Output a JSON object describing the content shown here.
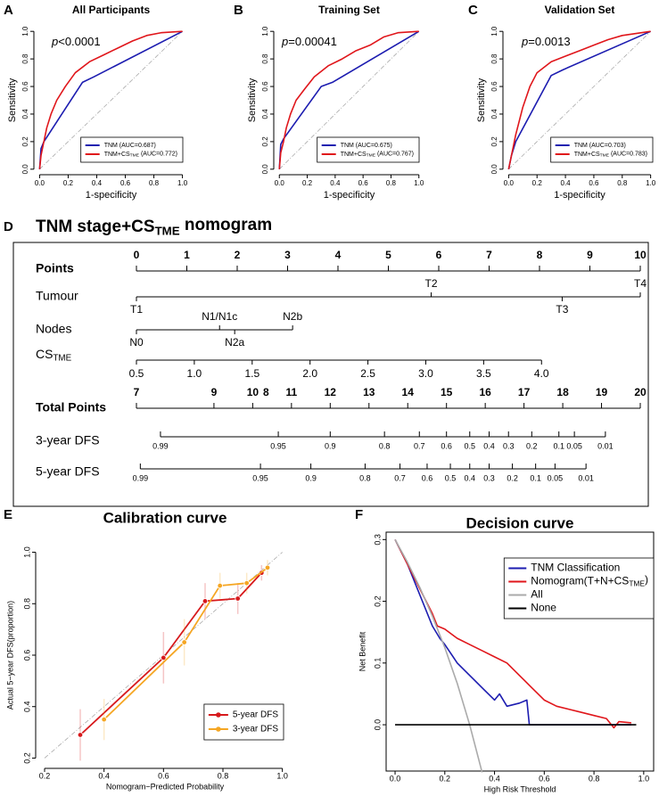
{
  "chart_data": [
    {
      "type": "line",
      "panel": "A",
      "title": "All Participants",
      "xlabel": "1-specificity",
      "ylabel": "Sensitivity",
      "annotation": [
        "p",
        "<0.0001"
      ],
      "xlim": [
        -0.04,
        1.04
      ],
      "ylim": [
        -0.04,
        1.04
      ],
      "xticks": [
        {
          "value": 0,
          "label": "0.0"
        },
        0.2,
        0.4,
        0.6,
        0.8,
        {
          "value": 1,
          "label": "1.0"
        }
      ],
      "yticks": [
        {
          "value": 0,
          "label": "0.0"
        },
        0.2,
        0.4,
        0.6,
        0.8,
        {
          "value": 1,
          "label": "1.0"
        }
      ],
      "reference_line": true,
      "legend": "bottom-right",
      "series": [
        {
          "name": "TNM (AUC=0.687)",
          "color": "#1c1cb0",
          "x": [
            0,
            0.01,
            0.03,
            0.3,
            0.38,
            1
          ],
          "values": [
            0,
            0.15,
            0.2,
            0.63,
            0.67,
            1
          ]
        },
        {
          "name": [
            "TNM+CS",
            "TME",
            " (AUC=0.772)"
          ],
          "color": "#e0161b",
          "x": [
            0,
            0.01,
            0.03,
            0.05,
            0.08,
            0.12,
            0.18,
            0.25,
            0.35,
            0.45,
            0.55,
            0.65,
            0.75,
            0.85,
            1
          ],
          "values": [
            0,
            0.1,
            0.2,
            0.3,
            0.4,
            0.5,
            0.6,
            0.7,
            0.78,
            0.83,
            0.88,
            0.93,
            0.97,
            0.99,
            1
          ]
        }
      ]
    },
    {
      "type": "line",
      "panel": "B",
      "title": "Training Set",
      "xlabel": "1-specificity",
      "ylabel": "Sensitivity",
      "annotation": [
        "p",
        "=0.00041"
      ],
      "xlim": [
        -0.04,
        1.04
      ],
      "ylim": [
        -0.04,
        1.04
      ],
      "xticks": [
        {
          "value": 0,
          "label": "0.0"
        },
        0.2,
        0.4,
        0.6,
        0.8,
        {
          "value": 1,
          "label": "1.0"
        }
      ],
      "yticks": [
        {
          "value": 0,
          "label": "0.0"
        },
        0.2,
        0.4,
        0.6,
        0.8,
        {
          "value": 1,
          "label": "1.0"
        }
      ],
      "reference_line": true,
      "legend": "bottom-right",
      "series": [
        {
          "name": "TNM (AUC=0.675)",
          "color": "#1c1cb0",
          "x": [
            0,
            0.01,
            0.03,
            0.3,
            0.38,
            1
          ],
          "values": [
            0,
            0.18,
            0.22,
            0.6,
            0.63,
            1
          ]
        },
        {
          "name": [
            "TNM+CS",
            "TME",
            " (AUC=0.767)"
          ],
          "color": "#e0161b",
          "x": [
            0,
            0.01,
            0.03,
            0.05,
            0.08,
            0.12,
            0.18,
            0.25,
            0.35,
            0.45,
            0.55,
            0.65,
            0.75,
            0.85,
            1
          ],
          "values": [
            0,
            0.12,
            0.2,
            0.3,
            0.4,
            0.5,
            0.58,
            0.67,
            0.75,
            0.8,
            0.86,
            0.9,
            0.96,
            0.99,
            1
          ]
        }
      ]
    },
    {
      "type": "line",
      "panel": "C",
      "title": "Validation Set",
      "xlabel": "1-specificity",
      "ylabel": "Sensitivity",
      "annotation": [
        "p",
        "=0.0013"
      ],
      "xlim": [
        -0.04,
        1.04
      ],
      "ylim": [
        -0.04,
        1.04
      ],
      "xticks": [
        {
          "value": 0,
          "label": "0.0"
        },
        0.2,
        0.4,
        0.6,
        0.8,
        {
          "value": 1,
          "label": "1.0"
        }
      ],
      "yticks": [
        {
          "value": 0,
          "label": "0.0"
        },
        0.2,
        0.4,
        0.6,
        0.8,
        {
          "value": 1,
          "label": "1.0"
        }
      ],
      "reference_line": true,
      "legend": "bottom-right",
      "series": [
        {
          "name": "TNM (AUC=0.703)",
          "color": "#1c1cb0",
          "x": [
            0,
            0.02,
            0.05,
            0.3,
            0.38,
            1
          ],
          "values": [
            0,
            0.1,
            0.2,
            0.68,
            0.72,
            1
          ]
        },
        {
          "name": [
            "TNM+CS",
            "TME",
            " (AUC=0.783)"
          ],
          "color": "#e0161b",
          "x": [
            0,
            0.02,
            0.05,
            0.1,
            0.15,
            0.2,
            0.3,
            0.4,
            0.5,
            0.6,
            0.7,
            0.8,
            1
          ],
          "values": [
            0,
            0.1,
            0.25,
            0.45,
            0.6,
            0.7,
            0.78,
            0.82,
            0.86,
            0.9,
            0.94,
            0.97,
            1
          ]
        }
      ]
    },
    {
      "type": "line",
      "panel": "E",
      "title": "Calibration curve",
      "xlabel": "Nomogram−Predicted Probability",
      "ylabel": "Actual 5−year DFS(proportion)",
      "xlim": [
        0.17,
        1.04
      ],
      "ylim": [
        0.16,
        1.04
      ],
      "xticks": [
        0.2,
        0.4,
        0.6,
        0.8,
        {
          "value": 1,
          "label": "1.0"
        }
      ],
      "yticks": [
        0.2,
        0.4,
        0.6,
        0.8,
        {
          "value": 1,
          "label": "1.0"
        }
      ],
      "reference_line": true,
      "markers": true,
      "legend": "bottom-right",
      "series": [
        {
          "name": "5-year DFS",
          "color": "#d7191c",
          "x": [
            0.32,
            0.6,
            0.74,
            0.85,
            0.93
          ],
          "values": [
            0.29,
            0.59,
            0.81,
            0.82,
            0.92
          ],
          "errors": [
            0.1,
            0.1,
            0.07,
            0.06,
            0.03
          ]
        },
        {
          "name": "3-year DFS",
          "color": "#f5a623",
          "x": [
            0.4,
            0.67,
            0.79,
            0.88,
            0.95
          ],
          "values": [
            0.35,
            0.65,
            0.87,
            0.88,
            0.94
          ],
          "errors": [
            0.08,
            0.09,
            0.05,
            0.04,
            0.03
          ]
        }
      ]
    },
    {
      "type": "line",
      "panel": "F",
      "title": "Decision curve",
      "xlabel": "High Risk Threshold",
      "ylabel": "Net Benefit",
      "xlim": [
        -0.036,
        1.04
      ],
      "ylim": [
        -0.075,
        0.312
      ],
      "box": true,
      "xticks": [
        {
          "value": 0,
          "label": "0.0"
        },
        0.2,
        0.4,
        0.6,
        0.8,
        {
          "value": 1,
          "label": "1.0"
        }
      ],
      "yticks": [
        {
          "value": 0,
          "label": "0.0"
        },
        0.1,
        0.2,
        0.3
      ],
      "legend": "top-right",
      "series": [
        {
          "name": "TNM Classification",
          "color": "#1c1cb0",
          "x": [
            0,
            0.05,
            0.1,
            0.15,
            0.18,
            0.2,
            0.25,
            0.3,
            0.35,
            0.4,
            0.42,
            0.45,
            0.5,
            0.53,
            0.54,
            0.55,
            0.95
          ],
          "values": [
            0.3,
            0.26,
            0.21,
            0.16,
            0.14,
            0.13,
            0.1,
            0.08,
            0.06,
            0.04,
            0.05,
            0.03,
            0.035,
            0.04,
            0,
            0,
            0
          ]
        },
        {
          "name": [
            "Nomogram(T+N+CS",
            "TME",
            ")"
          ],
          "color": "#e0161b",
          "x": [
            0,
            0.05,
            0.1,
            0.15,
            0.17,
            0.2,
            0.25,
            0.3,
            0.35,
            0.4,
            0.45,
            0.5,
            0.55,
            0.6,
            0.65,
            0.7,
            0.75,
            0.8,
            0.85,
            0.88,
            0.9,
            0.95
          ],
          "values": [
            0.3,
            0.26,
            0.22,
            0.18,
            0.16,
            0.155,
            0.14,
            0.13,
            0.12,
            0.11,
            0.1,
            0.08,
            0.06,
            0.04,
            0.03,
            0.025,
            0.02,
            0.015,
            0.01,
            -0.005,
            0.005,
            0.003
          ]
        },
        {
          "name": "All",
          "color": "#aaaaaa",
          "x": [
            0,
            0.05,
            0.1,
            0.15,
            0.2,
            0.25,
            0.3,
            0.35
          ],
          "values": [
            0.3,
            0.263,
            0.222,
            0.176,
            0.125,
            0.067,
            0,
            -0.077
          ]
        },
        {
          "name": "None",
          "color": "#000000",
          "x": [
            0,
            0.97
          ],
          "values": [
            0,
            0
          ]
        }
      ]
    }
  ],
  "nomogram": {
    "panel": "D",
    "title": [
      "TNM stage+CS",
      "TME",
      " nomogram"
    ],
    "points": {
      "label": "Points",
      "ticks": [
        0,
        1,
        2,
        3,
        4,
        5,
        6,
        7,
        8,
        9,
        10
      ]
    },
    "variables": [
      {
        "label": "Tumour",
        "levels": [
          "T1",
          "T2",
          "T3",
          "T4"
        ],
        "points": [
          0,
          5.85,
          8.45,
          10
        ]
      },
      {
        "label": "Nodes",
        "levels": [
          "N0",
          "N1/N1c",
          "N2a",
          "N2b"
        ],
        "points": [
          0,
          1.65,
          1.95,
          3.1
        ]
      }
    ],
    "cs_tme": {
      "label": [
        "CS",
        "TME"
      ],
      "lim": [
        0.5,
        4
      ],
      "points": [
        0,
        8.04
      ],
      "ticks": [
        0.5,
        {
          "value": 1,
          "label": "1.0"
        },
        1.5,
        {
          "value": 2,
          "label": "2.0"
        },
        2.5,
        {
          "value": 3,
          "label": "3.0"
        },
        3.5,
        {
          "value": 4,
          "label": "4.0"
        }
      ]
    },
    "total_points": {
      "label": "Total Points",
      "lim": [
        7,
        20
      ],
      "ticks": [
        7,
        9,
        10,
        11,
        12,
        13,
        14,
        15,
        16,
        17,
        18,
        19,
        20
      ],
      "extra_label": "8"
    },
    "survival": [
      {
        "label": "3-year DFS",
        "ticks": [
          0.99,
          0.95,
          0.9,
          0.8,
          0.7,
          0.6,
          0.5,
          0.4,
          0.3,
          0.2,
          0.1,
          0.05,
          0.01
        ],
        "total_points": [
          7.62,
          10.66,
          12.0,
          13.4,
          14.3,
          15.0,
          15.6,
          16.1,
          16.6,
          17.2,
          17.9,
          18.3,
          19.1
        ]
      },
      {
        "label": "5-year DFS",
        "ticks": [
          0.99,
          0.95,
          0.9,
          0.8,
          0.7,
          0.6,
          0.5,
          0.4,
          0.3,
          0.2,
          0.1,
          0.05,
          0.01
        ],
        "total_points": [
          7.1,
          10.2,
          11.5,
          12.9,
          13.8,
          14.5,
          15.1,
          15.6,
          16.1,
          16.7,
          17.3,
          17.8,
          18.6
        ]
      }
    ]
  }
}
